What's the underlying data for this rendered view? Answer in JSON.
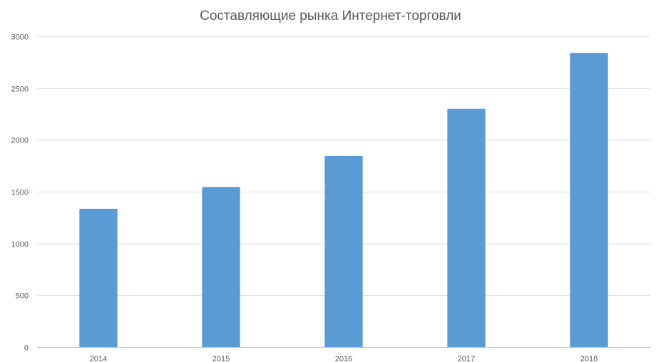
{
  "chart_data": {
    "type": "bar",
    "title": "Составляющие рынка Интернет-торговли",
    "xlabel": "",
    "ylabel": "",
    "categories": [
      "2014",
      "2015",
      "2016",
      "2017",
      "2018"
    ],
    "series": [
      {
        "values": [
          1335,
          1545,
          1845,
          2300,
          2840
        ]
      }
    ],
    "ylim": [
      0,
      3000
    ],
    "yticks": [
      "0",
      "500",
      "1000",
      "1500",
      "2000",
      "2500",
      "3000"
    ],
    "grid": true,
    "legend": "none",
    "colors": {
      "bar": "#5b9bd5"
    }
  }
}
